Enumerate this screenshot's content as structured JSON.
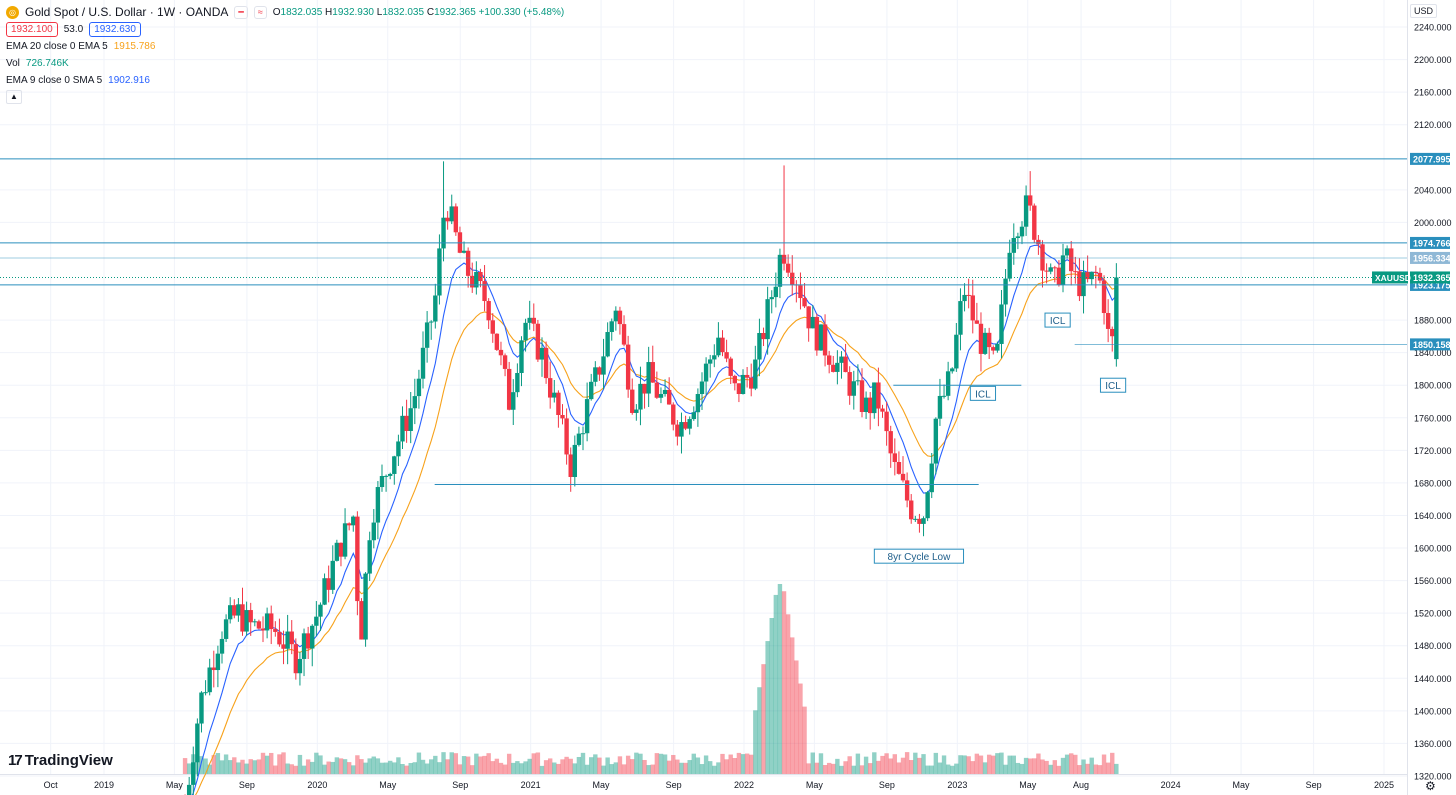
{
  "header": {
    "title": "Gold Spot / U.S. Dollar · 1W · OANDA",
    "ohlc": [
      {
        "k": "O",
        "v": "1832.035"
      },
      {
        "k": "H",
        "v": "1932.930"
      },
      {
        "k": "L",
        "v": "1832.035"
      },
      {
        "k": "C",
        "v": "1932.365"
      }
    ],
    "change": "+100.330 (+5.48%)",
    "bid": "1932.100",
    "spread": "53.0",
    "ask": "1932.630",
    "indicators": [
      {
        "label": "EMA 20 close 0 EMA 5",
        "value": "1915.786",
        "color": "#f7a21b"
      },
      {
        "label": "Vol",
        "value": "726.746K",
        "color": "#089981"
      },
      {
        "label": "EMA 9 close 0 SMA 5",
        "value": "1902.916",
        "color": "#2962ff"
      }
    ],
    "collapse_icon": "chevron-up-icon"
  },
  "currency_button": "USD",
  "logo_text": "TradingView",
  "settings_icon": "gear-icon",
  "colors": {
    "up": "#089981",
    "down": "#f23645",
    "ema20": "#f7a21b",
    "ema9": "#2962ff",
    "hline": "#2a8fbd"
  },
  "chart_data": {
    "type": "candlestick",
    "symbol": "XAUUSD",
    "timeframe": "1W",
    "ylim": [
      1320,
      2260
    ],
    "y_ticks": [
      "2240.000",
      "2200.000",
      "2160.000",
      "2120.000",
      "2040.000",
      "2000.000",
      "1880.000",
      "1840.000",
      "1800.000",
      "1760.000",
      "1720.000",
      "1680.000",
      "1640.000",
      "1600.000",
      "1560.000",
      "1520.000",
      "1480.000",
      "1440.000",
      "1400.000",
      "1360.000",
      "1320.000"
    ],
    "x_ticks": [
      {
        "label": "Oct",
        "t": 2018.75
      },
      {
        "label": "2019",
        "t": 2019.0
      },
      {
        "label": "May",
        "t": 2019.33
      },
      {
        "label": "Sep",
        "t": 2019.67
      },
      {
        "label": "2020",
        "t": 2020.0
      },
      {
        "label": "May",
        "t": 2020.33
      },
      {
        "label": "Sep",
        "t": 2020.67
      },
      {
        "label": "2021",
        "t": 2021.0
      },
      {
        "label": "May",
        "t": 2021.33
      },
      {
        "label": "Sep",
        "t": 2021.67
      },
      {
        "label": "2022",
        "t": 2022.0
      },
      {
        "label": "May",
        "t": 2022.33
      },
      {
        "label": "Sep",
        "t": 2022.67
      },
      {
        "label": "2023",
        "t": 2023.0
      },
      {
        "label": "May",
        "t": 2023.33
      },
      {
        "label": "Aug",
        "t": 2023.58
      },
      {
        "label": "2024",
        "t": 2024.0
      },
      {
        "label": "May",
        "t": 2024.33
      },
      {
        "label": "Sep",
        "t": 2024.67
      },
      {
        "label": "2025",
        "t": 2025.0
      }
    ],
    "price_path": [
      {
        "t": 2019.38,
        "p": 1285
      },
      {
        "t": 2019.45,
        "p": 1410
      },
      {
        "t": 2019.55,
        "p": 1500
      },
      {
        "t": 2019.63,
        "p": 1520
      },
      {
        "t": 2019.68,
        "p": 1505
      },
      {
        "t": 2019.8,
        "p": 1500
      },
      {
        "t": 2019.9,
        "p": 1465
      },
      {
        "t": 2020.0,
        "p": 1520
      },
      {
        "t": 2020.1,
        "p": 1600
      },
      {
        "t": 2020.17,
        "p": 1640
      },
      {
        "t": 2020.2,
        "p": 1480
      },
      {
        "t": 2020.25,
        "p": 1640
      },
      {
        "t": 2020.33,
        "p": 1700
      },
      {
        "t": 2020.45,
        "p": 1780
      },
      {
        "t": 2020.55,
        "p": 1900
      },
      {
        "t": 2020.6,
        "p": 2030
      },
      {
        "t": 2020.68,
        "p": 1950
      },
      {
        "t": 2020.8,
        "p": 1900
      },
      {
        "t": 2020.9,
        "p": 1780
      },
      {
        "t": 2020.97,
        "p": 1880
      },
      {
        "t": 2021.05,
        "p": 1840
      },
      {
        "t": 2021.13,
        "p": 1760
      },
      {
        "t": 2021.19,
        "p": 1700
      },
      {
        "t": 2021.25,
        "p": 1760
      },
      {
        "t": 2021.33,
        "p": 1830
      },
      {
        "t": 2021.4,
        "p": 1900
      },
      {
        "t": 2021.48,
        "p": 1780
      },
      {
        "t": 2021.55,
        "p": 1810
      },
      {
        "t": 2021.62,
        "p": 1780
      },
      {
        "t": 2021.7,
        "p": 1750
      },
      {
        "t": 2021.78,
        "p": 1790
      },
      {
        "t": 2021.88,
        "p": 1860
      },
      {
        "t": 2021.95,
        "p": 1790
      },
      {
        "t": 2022.05,
        "p": 1820
      },
      {
        "t": 2022.12,
        "p": 1900
      },
      {
        "t": 2022.18,
        "p": 1970
      },
      {
        "t": 2022.25,
        "p": 1930
      },
      {
        "t": 2022.32,
        "p": 1870
      },
      {
        "t": 2022.4,
        "p": 1840
      },
      {
        "t": 2022.5,
        "p": 1800
      },
      {
        "t": 2022.58,
        "p": 1770
      },
      {
        "t": 2022.62,
        "p": 1790
      },
      {
        "t": 2022.7,
        "p": 1700
      },
      {
        "t": 2022.78,
        "p": 1650
      },
      {
        "t": 2022.84,
        "p": 1640
      },
      {
        "t": 2022.9,
        "p": 1760
      },
      {
        "t": 2022.97,
        "p": 1810
      },
      {
        "t": 2023.03,
        "p": 1920
      },
      {
        "t": 2023.1,
        "p": 1860
      },
      {
        "t": 2023.18,
        "p": 1820
      },
      {
        "t": 2023.25,
        "p": 1990
      },
      {
        "t": 2023.33,
        "p": 2020
      },
      {
        "t": 2023.4,
        "p": 1960
      },
      {
        "t": 2023.45,
        "p": 1920
      },
      {
        "t": 2023.5,
        "p": 1960
      },
      {
        "t": 2023.55,
        "p": 1930
      },
      {
        "t": 2023.6,
        "p": 1920
      },
      {
        "t": 2023.65,
        "p": 1935
      },
      {
        "t": 2023.68,
        "p": 1920
      },
      {
        "t": 2023.72,
        "p": 1832
      },
      {
        "t": 2023.75,
        "p": 1932
      }
    ],
    "last_candle": {
      "open": 1832.035,
      "high": 1932.93,
      "low": 1832.035,
      "close": 1932.365
    },
    "spike_highs": [
      {
        "t": 2020.6,
        "p": 2075
      },
      {
        "t": 2022.18,
        "p": 2070
      },
      {
        "t": 2023.35,
        "p": 2063
      }
    ],
    "horizontal_levels": [
      {
        "value": 2077.995,
        "label": "2077.995",
        "span": "full"
      },
      {
        "value": 1974.766,
        "label": "1974.766",
        "span": "full"
      },
      {
        "value": 1956.334,
        "label": "1956.334",
        "span": "full-light"
      },
      {
        "value": 1923.175,
        "label": "1923.175",
        "span": "full"
      },
      {
        "value": 1850.158,
        "label": "1850.158",
        "span": "partial",
        "from_t": 2023.55
      },
      {
        "value": 1800,
        "label": "",
        "span": "segment",
        "from_t": 2022.7,
        "to_t": 2023.3
      },
      {
        "value": 1678,
        "label": "",
        "span": "segment",
        "from_t": 2020.55,
        "to_t": 2023.1
      }
    ],
    "current_price": {
      "label": "XAUUSD",
      "value": "1932.365"
    },
    "annotations": [
      {
        "text": "8yr Cycle Low",
        "t": 2022.82,
        "p": 1590
      },
      {
        "text": "ICL",
        "t": 2023.12,
        "p": 1790
      },
      {
        "text": "ICL",
        "t": 2023.47,
        "p": 1880
      },
      {
        "text": "ICL",
        "t": 2023.73,
        "p": 1800
      }
    ],
    "volume_spike": {
      "t": 2022.17,
      "rel": 1.0
    }
  }
}
